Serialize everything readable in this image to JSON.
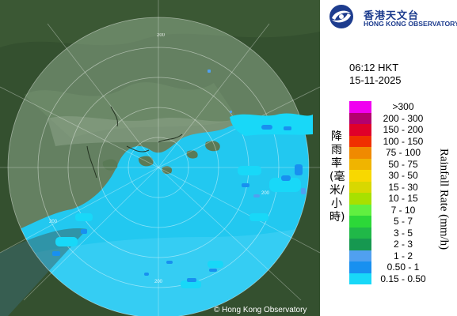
{
  "org": {
    "name_cn": "香港天文台",
    "name_en": "HONG KONG OBSERVATORY",
    "logo_icon": "hko-swirl-icon"
  },
  "observation": {
    "time": "06:12 HKT",
    "date": "15-11-2025"
  },
  "legend": {
    "unit_cn": "降雨率(毫米/小時)",
    "unit_en": "Rainfall Rate (mm/h)",
    "items": [
      {
        "label": ">300",
        "color": "#f000f0"
      },
      {
        "label": "200 - 300",
        "color": "#b4006e"
      },
      {
        "label": "150 - 200",
        "color": "#e0002a"
      },
      {
        "label": "100 - 150",
        "color": "#f03000"
      },
      {
        "label": "75 - 100",
        "color": "#f08a00"
      },
      {
        "label": "50 - 75",
        "color": "#f0b400"
      },
      {
        "label": "30 - 50",
        "color": "#f8d800"
      },
      {
        "label": "15 - 30",
        "color": "#d8d800"
      },
      {
        "label": "10 - 15",
        "color": "#a8e000"
      },
      {
        "label": "7 - 10",
        "color": "#60f040"
      },
      {
        "label": "5 - 7",
        "color": "#2cd838"
      },
      {
        "label": "3 - 5",
        "color": "#20b848"
      },
      {
        "label": "2 - 3",
        "color": "#169850"
      },
      {
        "label": "1 - 2",
        "color": "#50a0f0"
      },
      {
        "label": "0.50 - 1",
        "color": "#1890f0"
      },
      {
        "label": "0.15 - 0.50",
        "color": "#18d8f8"
      }
    ]
  },
  "map": {
    "range_rings": [
      "200",
      "200",
      "200",
      "200"
    ],
    "credit": "© Hong Kong Observatory"
  }
}
